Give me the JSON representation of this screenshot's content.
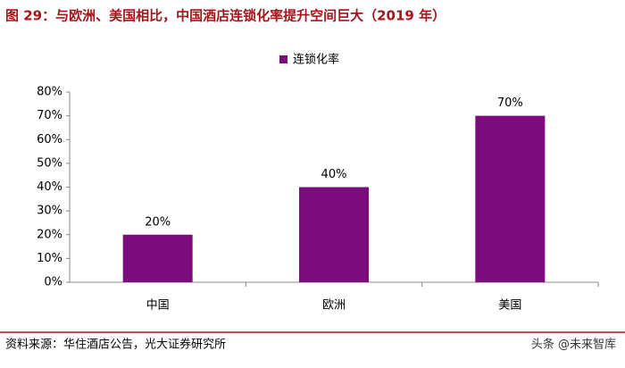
{
  "chart_data": {
    "type": "bar",
    "title": "图 29：与欧洲、美国相比，中国酒店连锁化率提升空间巨大（2019 年）",
    "categories": [
      "中国",
      "欧洲",
      "美国"
    ],
    "series": [
      {
        "name": "连锁化率",
        "color": "#7b0c7b",
        "values": [
          20,
          40,
          70
        ],
        "value_labels": [
          "20%",
          "40%",
          "70%"
        ]
      }
    ],
    "ylim": [
      0,
      80
    ],
    "yticks": [
      {
        "value": 0,
        "label": "0%"
      },
      {
        "value": 10,
        "label": "10%"
      },
      {
        "value": 20,
        "label": "20%"
      },
      {
        "value": 30,
        "label": "30%"
      },
      {
        "value": 40,
        "label": "40%"
      },
      {
        "value": 50,
        "label": "50%"
      },
      {
        "value": 60,
        "label": "60%"
      },
      {
        "value": 70,
        "label": "70%"
      },
      {
        "value": 80,
        "label": "80%"
      }
    ],
    "source": "资料来源：华住酒店公告，光大证券研究所",
    "watermark": "头条 @未来智库"
  }
}
